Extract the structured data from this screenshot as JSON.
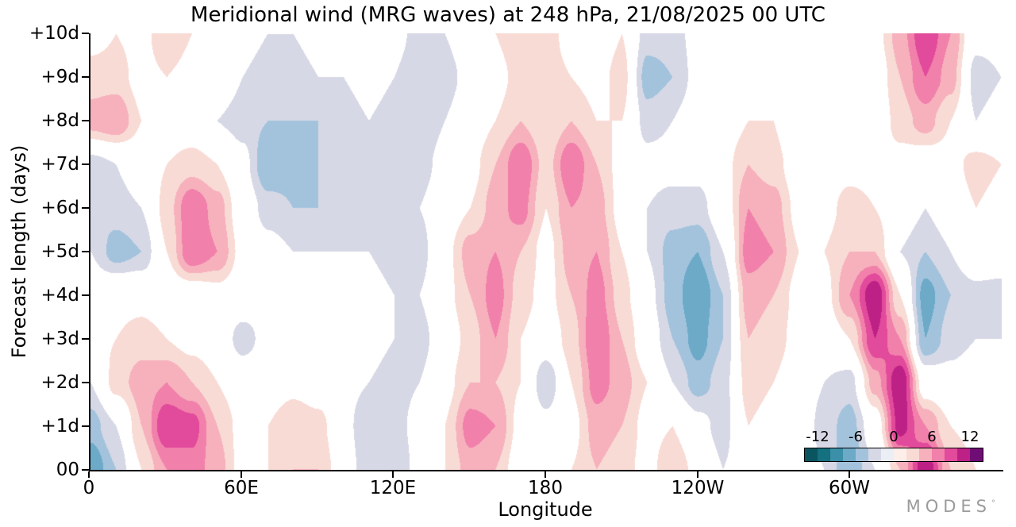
{
  "logo": {
    "text": "MODES",
    "symbol": "°"
  },
  "chart_data": {
    "type": "heatmap",
    "title": "Meridional wind (MRG waves) at 248 hPa, 21/08/2025 00 UTC",
    "xlabel": "Longitude",
    "ylabel": "Forecast length (days)",
    "x_tick_labels": [
      "0",
      "60E",
      "120E",
      "180",
      "120W",
      "60W"
    ],
    "x_tick_degrees": [
      0,
      60,
      120,
      180,
      240,
      300
    ],
    "x_range_degrees": [
      0,
      360
    ],
    "y_tick_labels": [
      "+10d",
      "+9d",
      "+8d",
      "+7d",
      "+6d",
      "+5d",
      "+4d",
      "+3d",
      "+2d",
      "+1d",
      "00"
    ],
    "y_range_days": [
      0,
      10
    ],
    "colorbar": {
      "tick_labels": [
        "-12",
        "-6",
        "0",
        "6",
        "12"
      ],
      "levels": [
        -12,
        -10,
        -8,
        -6,
        -4,
        -2,
        2,
        4,
        6,
        8,
        10,
        12
      ],
      "palette": [
        "#0b5560",
        "#15707f",
        "#3b8fa8",
        "#6caac8",
        "#a3c3dd",
        "#d7d8e6",
        "#ffffff",
        "#f9dbd5",
        "#f6b1bd",
        "#f180aa",
        "#e24a9b",
        "#bd2186",
        "#700d75"
      ],
      "bar_colors": [
        "#0b5560",
        "#15707f",
        "#3b8fa8",
        "#6caac8",
        "#a3c3dd",
        "#d7d8e6",
        "#eceef5",
        "#fdeeea",
        "#f9dbd5",
        "#f6b1bd",
        "#f180aa",
        "#e24a9b",
        "#bd2186",
        "#700d75"
      ]
    },
    "grid": {
      "units": "m/s anomaly (estimated from contours)",
      "lons": [
        0,
        10,
        20,
        30,
        40,
        50,
        60,
        70,
        80,
        90,
        100,
        110,
        120,
        130,
        140,
        150,
        160,
        170,
        180,
        190,
        200,
        210,
        220,
        230,
        240,
        250,
        260,
        270,
        280,
        290,
        300,
        310,
        320,
        330,
        340,
        350,
        360
      ],
      "days": [
        0,
        1,
        2,
        3,
        4,
        5,
        6,
        7,
        8,
        9,
        10
      ],
      "values_by_day": [
        [
          -8,
          -4,
          2,
          6,
          7,
          5,
          1,
          2,
          4,
          4,
          0,
          -4,
          -4,
          -1,
          2,
          5,
          4,
          0,
          0,
          2,
          4,
          3,
          1,
          4,
          1,
          -2,
          0,
          0,
          0,
          -2,
          -6,
          -2,
          4,
          12,
          4,
          2,
          1
        ],
        [
          -5,
          -2,
          4,
          10,
          9,
          4,
          1,
          2,
          4,
          3,
          -1,
          -4,
          -3,
          -1,
          2,
          7,
          6,
          1,
          -1,
          1,
          5,
          4,
          1,
          2,
          -1,
          -3,
          2,
          1,
          0,
          -3,
          -5,
          0,
          11,
          6,
          2,
          1,
          0
        ],
        [
          -2,
          3,
          5,
          6,
          4,
          2,
          0,
          0,
          1,
          0,
          -1,
          -2,
          -3,
          -2,
          1,
          4,
          4,
          2,
          -4,
          2,
          7,
          5,
          2,
          -2,
          -5,
          -3,
          3,
          2,
          0,
          -2,
          -3,
          5,
          12,
          0,
          -1,
          0,
          -1
        ],
        [
          1,
          2,
          3,
          2,
          1,
          0,
          -3,
          -1,
          0,
          0,
          -1,
          -1,
          -2,
          -3,
          0,
          3,
          6,
          2,
          0,
          3,
          8,
          4,
          0,
          -4,
          -7,
          -4,
          4,
          3,
          1,
          0,
          2,
          10,
          6,
          -6,
          -3,
          -2,
          -2
        ],
        [
          0,
          1,
          1,
          0,
          0,
          1,
          0,
          -1,
          -1,
          -1,
          0,
          -1,
          -2,
          -2,
          1,
          4,
          7,
          3,
          1,
          4,
          7,
          3,
          -1,
          -5,
          -8,
          -4,
          5,
          4,
          1,
          1,
          6,
          12,
          2,
          -7,
          -4,
          -3,
          -3
        ],
        [
          -2,
          -5,
          -4,
          2,
          8,
          6,
          1,
          -1,
          -2,
          -2,
          -2,
          -2,
          -3,
          -3,
          1,
          5,
          6,
          4,
          1,
          5,
          6,
          2,
          -2,
          -5,
          -6,
          -2,
          7,
          6,
          2,
          2,
          4,
          4,
          -2,
          -4,
          -2,
          1,
          0
        ],
        [
          -4,
          -3,
          -2,
          3,
          8,
          5,
          0,
          -3,
          -4,
          -4,
          -3,
          -3,
          -2,
          -2,
          0,
          2,
          5,
          7,
          2,
          6,
          5,
          1,
          -2,
          -3,
          -3,
          0,
          6,
          5,
          1,
          1,
          3,
          2,
          0,
          -2,
          0,
          2,
          1
        ],
        [
          -3,
          -2,
          0,
          2,
          3,
          2,
          -1,
          -6,
          -5,
          -4,
          -4,
          -3,
          -3,
          -3,
          -1,
          1,
          4,
          8,
          3,
          8,
          4,
          1,
          -1,
          -1,
          -1,
          1,
          4,
          3,
          0,
          0,
          1,
          1,
          1,
          0,
          1,
          3,
          2
        ],
        [
          5,
          6,
          2,
          0,
          0,
          -2,
          -3,
          -4,
          -4,
          -4,
          -3,
          -2,
          -3,
          -4,
          -2,
          0,
          2,
          4,
          2,
          4,
          2,
          2,
          -3,
          -2,
          0,
          0,
          2,
          2,
          -2,
          -1,
          0,
          0,
          3,
          5,
          2,
          -2,
          -1
        ],
        [
          3,
          3,
          1,
          2,
          1,
          0,
          -2,
          -3,
          -3,
          -2,
          -2,
          -1,
          -2,
          -4,
          -3,
          -1,
          1,
          3,
          3,
          2,
          1,
          3,
          -5,
          -4,
          -1,
          0,
          1,
          0,
          -2,
          1,
          1,
          0,
          4,
          8,
          5,
          -3,
          -2
        ],
        [
          1,
          2,
          1,
          4,
          2,
          0,
          -1,
          -2,
          -2,
          -1,
          -1,
          0,
          -1,
          -3,
          -2,
          0,
          2,
          4,
          3,
          1,
          0,
          2,
          -3,
          -3,
          -1,
          1,
          1,
          -1,
          -1,
          2,
          1,
          1,
          5,
          10,
          6,
          -1,
          -1
        ]
      ]
    }
  }
}
